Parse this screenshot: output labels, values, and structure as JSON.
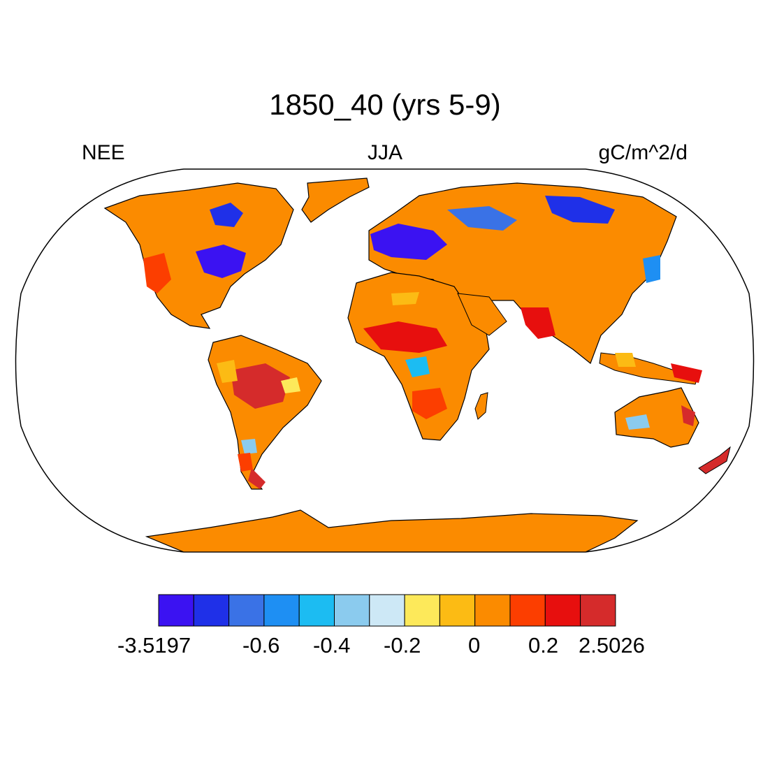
{
  "title": "1850_40 (yrs 5-9)",
  "left_label": "NEE",
  "center_label": "JJA",
  "right_label": "gC/m^2/d",
  "colorbar": {
    "colors": [
      "#3b12f2",
      "#1f30e8",
      "#3a72e6",
      "#1e8ff3",
      "#1cbcf2",
      "#8bcbee",
      "#cde8f6",
      "#fde95a",
      "#fcbb14",
      "#fb8b00",
      "#fc3e00",
      "#e70f0e",
      "#d52b2b"
    ],
    "tick_labels": [
      "-3.5197",
      "-0.6",
      "-0.4",
      "-0.2",
      "0",
      "0.2",
      "2.5026"
    ]
  },
  "map": {
    "projection": "Robinson",
    "land_fill_color": "#fb8b00",
    "ocean_color": "#ffffff"
  }
}
